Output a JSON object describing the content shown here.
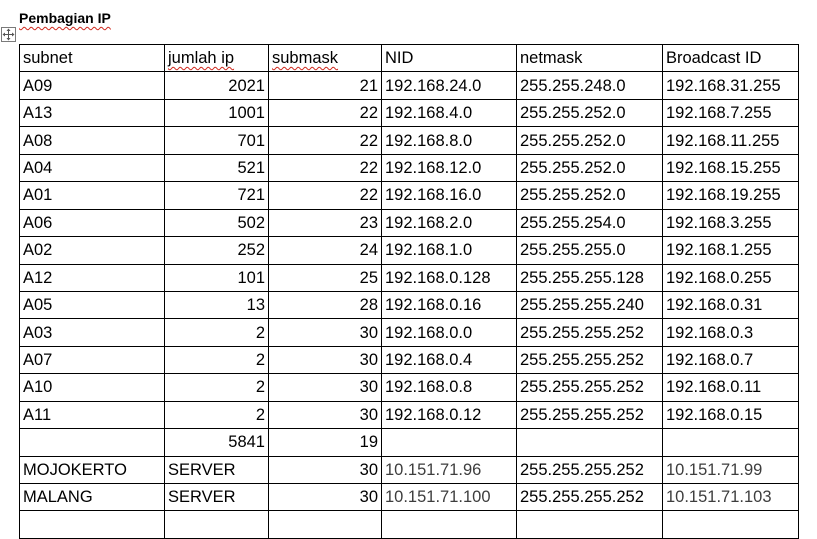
{
  "title": "Pembagian IP",
  "icons": {
    "table_move_handle": "move-arrows-icon"
  },
  "colors": {
    "spellcheck_underline": "#d0281c"
  },
  "table": {
    "headers": [
      "subnet",
      "jumlah ip",
      "submask",
      "NID",
      "netmask",
      "Broadcast ID"
    ],
    "rows": [
      [
        "A09",
        "2021",
        "21",
        "192.168.24.0",
        "255.255.248.0",
        "192.168.31.255"
      ],
      [
        "A13",
        "1001",
        "22",
        "192.168.4.0",
        "255.255.252.0",
        "192.168.7.255"
      ],
      [
        "A08",
        "701",
        "22",
        "192.168.8.0",
        "255.255.252.0",
        "192.168.11.255"
      ],
      [
        "A04",
        "521",
        "22",
        "192.168.12.0",
        "255.255.252.0",
        "192.168.15.255"
      ],
      [
        "A01",
        "721",
        "22",
        "192.168.16.0",
        "255.255.252.0",
        "192.168.19.255"
      ],
      [
        "A06",
        "502",
        "23",
        "192.168.2.0",
        "255.255.254.0",
        "192.168.3.255"
      ],
      [
        "A02",
        "252",
        "24",
        "192.168.1.0",
        "255.255.255.0",
        "192.168.1.255"
      ],
      [
        "A12",
        "101",
        "25",
        "192.168.0.128",
        "255.255.255.128",
        "192.168.0.255"
      ],
      [
        "A05",
        "13",
        "28",
        "192.168.0.16",
        "255.255.255.240",
        "192.168.0.31"
      ],
      [
        "A03",
        "2",
        "30",
        "192.168.0.0",
        "255.255.255.252",
        "192.168.0.3"
      ],
      [
        "A07",
        "2",
        "30",
        "192.168.0.4",
        "255.255.255.252",
        "192.168.0.7"
      ],
      [
        "A10",
        "2",
        "30",
        "192.168.0.8",
        "255.255.255.252",
        "192.168.0.11"
      ],
      [
        "A11",
        "2",
        "30",
        "192.168.0.12",
        "255.255.255.252",
        "192.168.0.15"
      ],
      [
        "",
        "5841",
        "19",
        "",
        "",
        ""
      ],
      [
        "MOJOKERTO",
        "SERVER",
        "30",
        "10.151.71.96",
        "255.255.255.252",
        "10.151.71.99"
      ],
      [
        "MALANG",
        "SERVER",
        "30",
        "10.151.71.100",
        "255.255.255.252",
        "10.151.71.103"
      ]
    ]
  }
}
